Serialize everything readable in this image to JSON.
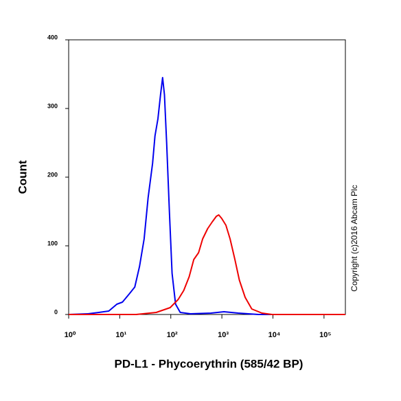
{
  "chart_data": {
    "type": "histogram-line",
    "x_label": "PD-L1 - Phycoerythrin (585/42 BP)",
    "y_label": "Count",
    "annotation": "Copyright (c)2016 Abcam Plc",
    "log_x": true,
    "xlim": [
      1,
      262144
    ],
    "ylim": [
      0,
      400
    ],
    "xticks": [
      {
        "value": 1,
        "label": "10⁰"
      },
      {
        "value": 10,
        "label": "10¹"
      },
      {
        "value": 100,
        "label": "10²"
      },
      {
        "value": 1000,
        "label": "10³"
      },
      {
        "value": 10000,
        "label": "10⁴"
      },
      {
        "value": 100000,
        "label": "10⁵"
      }
    ],
    "yticks": [
      0,
      100,
      200,
      300,
      400
    ],
    "series": [
      {
        "color": "#0000ee",
        "x": [
          1,
          2.4,
          3.9,
          6.1,
          8.8,
          11.3,
          15.4,
          19.7,
          24.4,
          30,
          36,
          44,
          49,
          56,
          63,
          69,
          75,
          83,
          94,
          106,
          124,
          153,
          243,
          610,
          1100,
          2100,
          5200,
          262144
        ],
        "values": [
          0,
          1,
          3,
          5,
          15,
          18,
          30,
          40,
          70,
          110,
          170,
          220,
          260,
          285,
          320,
          345,
          320,
          250,
          150,
          60,
          15,
          3,
          1,
          2,
          4,
          2,
          0,
          0
        ]
      },
      {
        "color": "#ee0000",
        "x": [
          1,
          21,
          52,
          97,
          140,
          179,
          229,
          282,
          350,
          420,
          526,
          650,
          780,
          870,
          990,
          1200,
          1450,
          1800,
          2200,
          2850,
          3850,
          6100,
          9600,
          262144
        ],
        "values": [
          0,
          0,
          3,
          10,
          22,
          35,
          55,
          80,
          90,
          110,
          125,
          135,
          143,
          145,
          140,
          130,
          110,
          80,
          50,
          25,
          8,
          2,
          0,
          0
        ]
      }
    ]
  }
}
